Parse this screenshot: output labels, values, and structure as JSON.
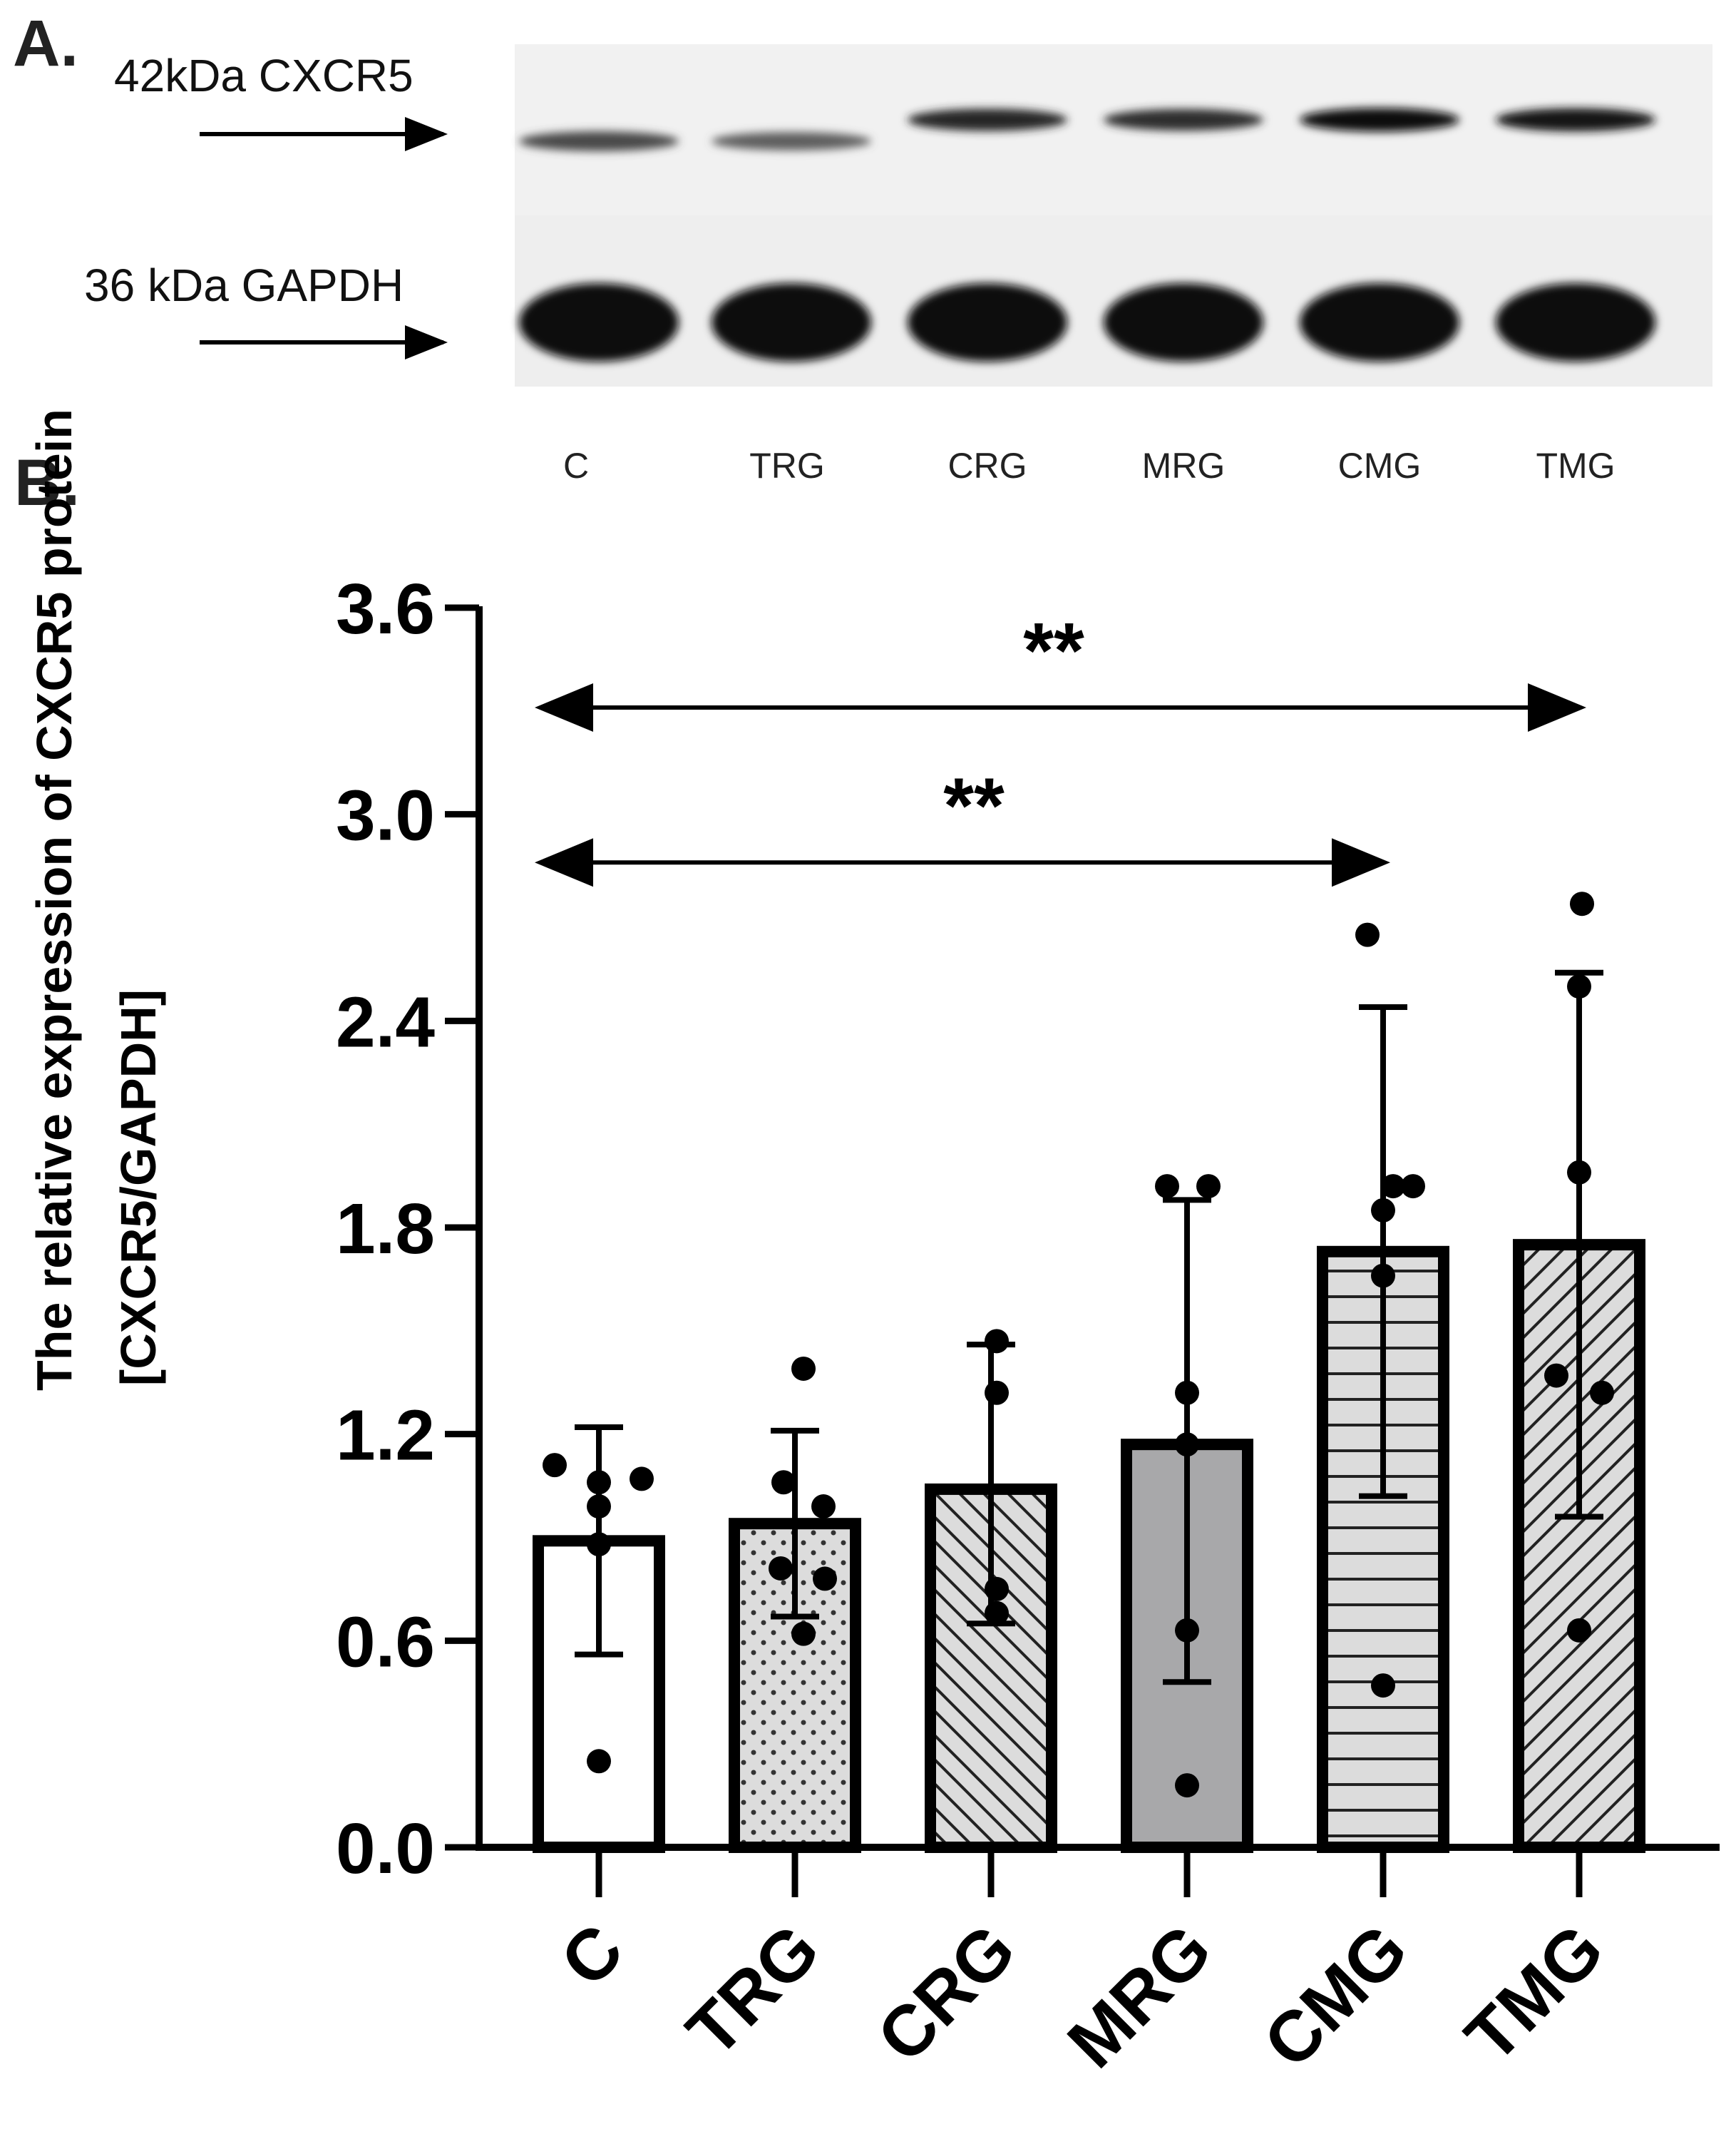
{
  "panel_a": {
    "label": "A.",
    "blot_rows": [
      {
        "label": "42kDa CXCR5",
        "intensities": [
          0.55,
          0.4,
          0.8,
          0.75,
          0.95,
          0.9
        ]
      },
      {
        "label": "36 kDa GAPDH",
        "intensities": [
          1.0,
          1.0,
          1.0,
          1.0,
          1.0,
          1.0
        ]
      }
    ],
    "lanes": [
      "C",
      "TRG",
      "CRG",
      "MRG",
      "CMG",
      "TMG"
    ]
  },
  "panel_b": {
    "label": "B."
  },
  "chart_data": {
    "type": "bar",
    "categories": [
      "C",
      "TRG",
      "CRG",
      "MRG",
      "CMG",
      "TMG"
    ],
    "values": [
      0.89,
      0.94,
      1.04,
      1.17,
      1.73,
      1.75
    ],
    "error_bars": [
      {
        "low": 0.56,
        "high": 1.22
      },
      {
        "low": 0.67,
        "high": 1.21
      },
      {
        "low": 0.65,
        "high": 1.46
      },
      {
        "low": 0.48,
        "high": 1.88
      },
      {
        "low": 1.02,
        "high": 2.44
      },
      {
        "low": 0.96,
        "high": 2.54
      }
    ],
    "points": [
      [
        1.11,
        1.07,
        1.06,
        0.99,
        0.88,
        0.25
      ],
      [
        1.39,
        1.06,
        0.99,
        0.81,
        0.78,
        0.62
      ],
      [
        1.47,
        1.32,
        0.75,
        0.68
      ],
      [
        1.92,
        1.92,
        1.32,
        1.17,
        0.63,
        0.18
      ],
      [
        2.65,
        1.92,
        1.92,
        1.85,
        1.66,
        0.47
      ],
      [
        2.74,
        2.5,
        1.96,
        1.37,
        1.32,
        0.63
      ]
    ],
    "patterns": [
      "none",
      "dots",
      "diag-back",
      "solid-gray",
      "horizontal",
      "diag-forward"
    ],
    "fill_colors": [
      "#ffffff",
      "#dcdcdc",
      "#dcdcdc",
      "#a8a8aa",
      "#dcdcdc",
      "#dcdcdc"
    ],
    "xlabel": "",
    "ylabel_line1": "The relative expression of CXCR5 protein",
    "ylabel_line2": "[CXCR5/GAPDH]",
    "ylim": [
      0,
      3.6
    ],
    "yticks": [
      "0.0",
      "0.6",
      "1.2",
      "1.8",
      "2.4",
      "3.0",
      "3.6"
    ],
    "significance": [
      {
        "from": "C",
        "to": "CMG",
        "y": 2.86,
        "label": "**"
      },
      {
        "from": "C",
        "to": "TMG",
        "y": 3.31,
        "label": "**"
      }
    ],
    "grid": false
  }
}
